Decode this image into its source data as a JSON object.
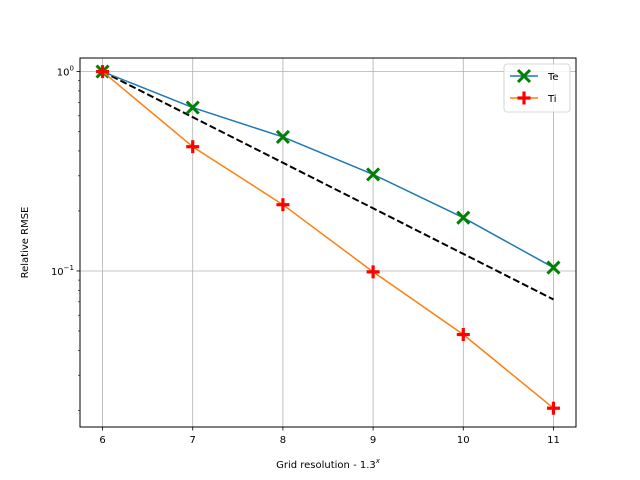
{
  "chart_data": {
    "type": "line",
    "title": "",
    "xlabel": "Grid resolution - 1.3",
    "xlabel_superscript": "x",
    "ylabel": "Relative RMSE",
    "y_scale": "log",
    "xlim": [
      5.75,
      11.25
    ],
    "ylim": [
      0.0165,
      1.17
    ],
    "x_ticks": [
      6,
      7,
      8,
      9,
      10,
      11
    ],
    "x_tick_labels": [
      "6",
      "7",
      "8",
      "9",
      "10",
      "11"
    ],
    "y_ticks": [
      0.1,
      1
    ],
    "y_tick_labels": [
      {
        "base": "10",
        "exp": "−1"
      },
      {
        "base": "10",
        "exp": "0"
      }
    ],
    "grid": true,
    "legend_position": "top-right",
    "series": [
      {
        "name": "Te",
        "x": [
          6,
          7,
          8,
          9,
          10,
          11
        ],
        "values": [
          1.0,
          0.66,
          0.47,
          0.305,
          0.185,
          0.104
        ],
        "line_color": "#1f77b4",
        "marker": "x",
        "marker_color": "#008000"
      },
      {
        "name": "Ti",
        "x": [
          6,
          7,
          8,
          9,
          10,
          11
        ],
        "values": [
          1.0,
          0.42,
          0.215,
          0.099,
          0.048,
          0.0205
        ],
        "line_color": "#ff7f0e",
        "marker": "plus",
        "marker_color": "#ff0000"
      }
    ],
    "reference_line": {
      "x": [
        6,
        11
      ],
      "values": [
        1.0,
        0.072
      ],
      "color": "#000000",
      "style": "dashed"
    }
  }
}
